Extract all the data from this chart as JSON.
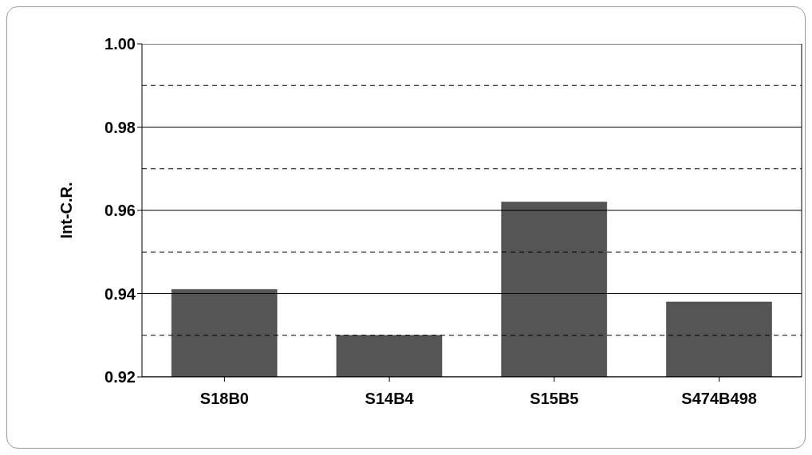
{
  "chart_data": {
    "type": "bar",
    "ylabel": "Int-C.R.",
    "categories": [
      "S18B0",
      "S14B4",
      "S15B5",
      "S474B498"
    ],
    "values": [
      0.941,
      0.93,
      0.962,
      0.938
    ],
    "color": "#555555",
    "ylim": [
      0.92,
      1.0
    ],
    "yticks": [
      {
        "value": 0.92,
        "label": "0.92"
      },
      {
        "value": 0.93,
        "label": null
      },
      {
        "value": 0.94,
        "label": "0.94"
      },
      {
        "value": 0.95,
        "label": null
      },
      {
        "value": 0.96,
        "label": "0.96"
      },
      {
        "value": 0.97,
        "label": null
      },
      {
        "value": 0.98,
        "label": "0.98"
      },
      {
        "value": 0.99,
        "label": null
      },
      {
        "value": 1.0,
        "label": "1.00"
      }
    ],
    "grid": "y",
    "legend": false
  }
}
